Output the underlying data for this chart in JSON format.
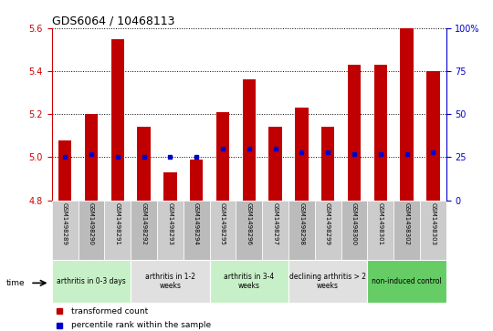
{
  "title": "GDS6064 / 10468113",
  "samples": [
    "GSM1498289",
    "GSM1498290",
    "GSM1498291",
    "GSM1498292",
    "GSM1498293",
    "GSM1498294",
    "GSM1498295",
    "GSM1498296",
    "GSM1498297",
    "GSM1498298",
    "GSM1498299",
    "GSM1498300",
    "GSM1498301",
    "GSM1498302",
    "GSM1498303"
  ],
  "transformed_count": [
    5.08,
    5.2,
    5.55,
    5.14,
    4.93,
    4.99,
    5.21,
    5.36,
    5.14,
    5.23,
    5.14,
    5.43,
    5.43,
    5.6,
    5.4
  ],
  "percentile_rank": [
    25,
    27,
    25,
    25,
    25,
    25,
    30,
    30,
    30,
    28,
    28,
    27,
    27,
    27,
    28
  ],
  "ylim_left": [
    4.8,
    5.6
  ],
  "ylim_right": [
    0,
    100
  ],
  "yticks_left": [
    4.8,
    5.0,
    5.2,
    5.4,
    5.6
  ],
  "yticks_right": [
    0,
    25,
    50,
    75,
    100
  ],
  "bar_color": "#C00000",
  "dot_color": "#0000CC",
  "groups": [
    {
      "label": "arthritis in 0-3 days",
      "start": 0,
      "end": 3,
      "color": "#C8F0C8"
    },
    {
      "label": "arthritis in 1-2\nweeks",
      "start": 3,
      "end": 6,
      "color": "#E0E0E0"
    },
    {
      "label": "arthritis in 3-4\nweeks",
      "start": 6,
      "end": 9,
      "color": "#C8F0C8"
    },
    {
      "label": "declining arthritis > 2\nweeks",
      "start": 9,
      "end": 12,
      "color": "#E0E0E0"
    },
    {
      "label": "non-induced control",
      "start": 12,
      "end": 15,
      "color": "#66CC66"
    }
  ],
  "bg_color": "#FFFFFF",
  "left_axis_color": "#CC0000",
  "right_axis_color": "#0000CC",
  "title_color": "#000000",
  "bar_width": 0.5,
  "label_col_color": "#CCCCCC"
}
